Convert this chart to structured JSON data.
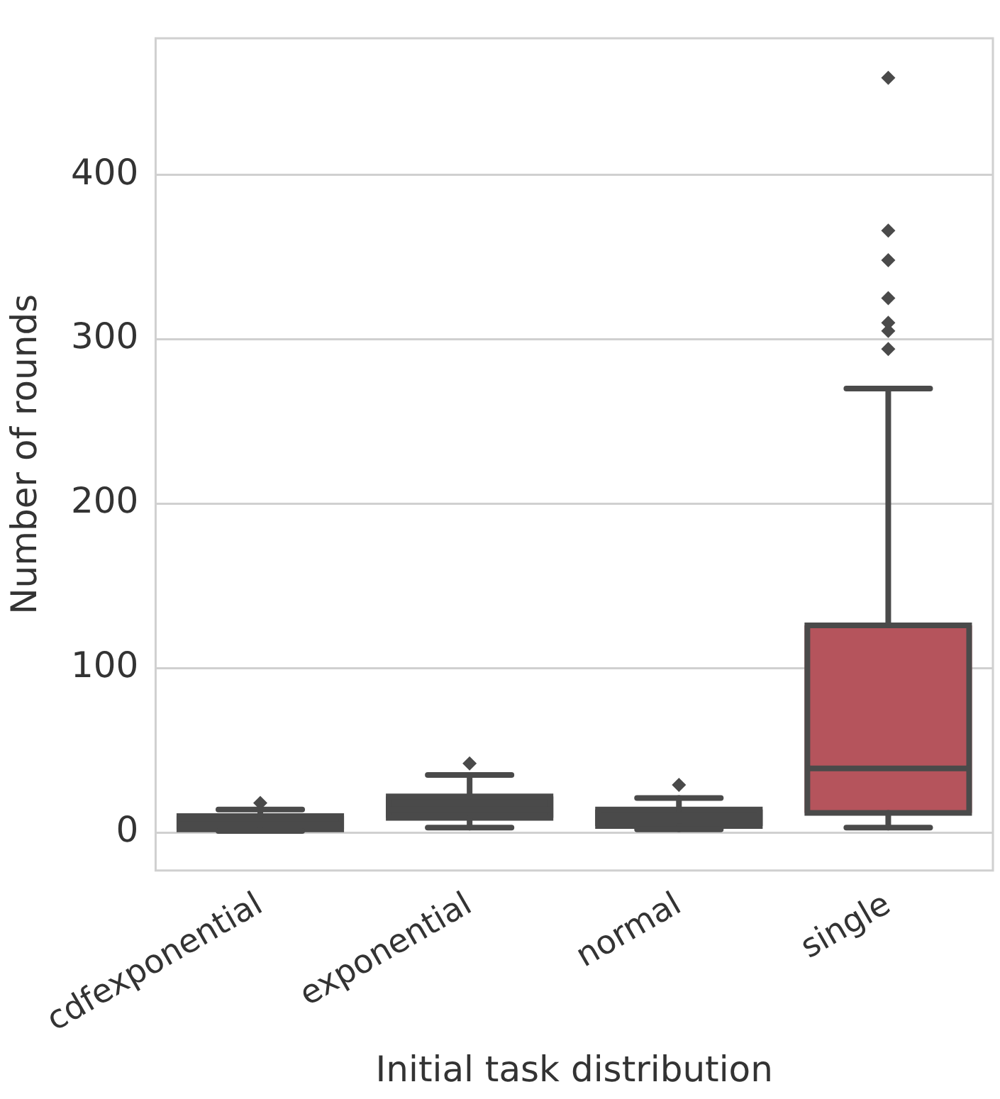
{
  "chart_data": {
    "type": "box",
    "xlabel": "Initial task distribution",
    "ylabel": "Number of rounds",
    "categories": [
      "cdfexponential",
      "exponential",
      "normal",
      "single"
    ],
    "colors": [
      "#4a4a4a",
      "#4a4a4a",
      "#4a4a4a",
      "#b5545c"
    ],
    "boxes": [
      {
        "low": 1,
        "q1": 2,
        "median": 5,
        "q3": 10,
        "high": 14,
        "outliers": [
          18
        ]
      },
      {
        "low": 3,
        "q1": 9,
        "median": 14,
        "q3": 22,
        "high": 35,
        "outliers": [
          42
        ]
      },
      {
        "low": 2,
        "q1": 4,
        "median": 9,
        "q3": 14,
        "high": 21,
        "outliers": [
          29
        ]
      },
      {
        "low": 3,
        "q1": 12,
        "median": 39,
        "q3": 126,
        "high": 270,
        "outliers": [
          294,
          305,
          310,
          325,
          348,
          366,
          459
        ]
      }
    ],
    "ylim": [
      -23,
      483
    ],
    "yticks": [
      0,
      100,
      200,
      300,
      400
    ],
    "grid": "y"
  }
}
